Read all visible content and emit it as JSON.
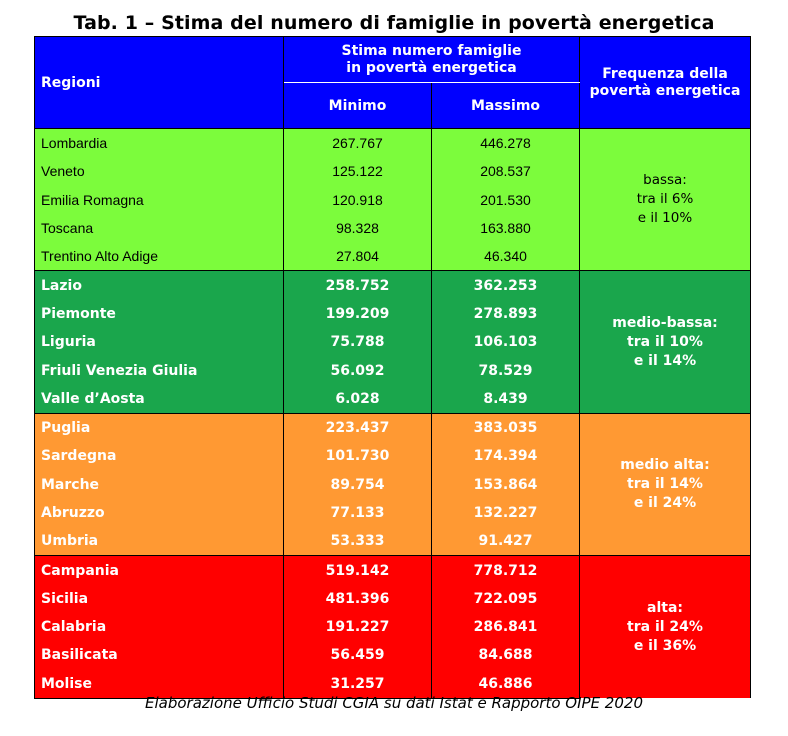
{
  "title": "Tab. 1 – Stima del numero di famiglie in povertà energetica",
  "header": {
    "regioni": "Regioni",
    "stima_line1": "Stima numero famiglie",
    "stima_line2": "in povertà energetica",
    "minimo": "Minimo",
    "massimo": "Massimo",
    "freq_line1": "Frequenza della",
    "freq_line2": "povertà energetica"
  },
  "groups": [
    {
      "freq": [
        "bassa:",
        "tra il 6%",
        "e il 10%"
      ],
      "color": "#7cfc3c",
      "rows": [
        {
          "regione": "Lombardia",
          "minimo": "267.767",
          "massimo": "446.278"
        },
        {
          "regione": "Veneto",
          "minimo": "125.122",
          "massimo": "208.537"
        },
        {
          "regione": "Emilia Romagna",
          "minimo": "120.918",
          "massimo": "201.530"
        },
        {
          "regione": "Toscana",
          "minimo": "98.328",
          "massimo": "163.880"
        },
        {
          "regione": "Trentino Alto Adige",
          "minimo": "27.804",
          "massimo": "46.340"
        }
      ]
    },
    {
      "freq": [
        "medio-bassa:",
        "tra il 10%",
        "e il 14%"
      ],
      "color": "#1aa64c",
      "rows": [
        {
          "regione": "Lazio",
          "minimo": "258.752",
          "massimo": "362.253"
        },
        {
          "regione": "Piemonte",
          "minimo": "199.209",
          "massimo": "278.893"
        },
        {
          "regione": "Liguria",
          "minimo": "75.788",
          "massimo": "106.103"
        },
        {
          "regione": "Friuli Venezia Giulia",
          "minimo": "56.092",
          "massimo": "78.529"
        },
        {
          "regione": "Valle d’Aosta",
          "minimo": "6.028",
          "massimo": "8.439"
        }
      ]
    },
    {
      "freq": [
        "medio alta:",
        "tra il 14%",
        "e il 24%"
      ],
      "color": "#ff9933",
      "rows": [
        {
          "regione": "Puglia",
          "minimo": "223.437",
          "massimo": "383.035"
        },
        {
          "regione": "Sardegna",
          "minimo": "101.730",
          "massimo": "174.394"
        },
        {
          "regione": "Marche",
          "minimo": "89.754",
          "massimo": "153.864"
        },
        {
          "regione": "Abruzzo",
          "minimo": "77.133",
          "massimo": "132.227"
        },
        {
          "regione": "Umbria",
          "minimo": "53.333",
          "massimo": "91.427"
        }
      ]
    },
    {
      "freq": [
        "alta:",
        "tra il 24%",
        "e il 36%"
      ],
      "color": "#ff0000",
      "rows": [
        {
          "regione": "Campania",
          "minimo": "519.142",
          "massimo": "778.712"
        },
        {
          "regione": "Sicilia",
          "minimo": "481.396",
          "massimo": "722.095"
        },
        {
          "regione": "Calabria",
          "minimo": "191.227",
          "massimo": "286.841"
        },
        {
          "regione": "Basilicata",
          "minimo": "56.459",
          "massimo": "84.688"
        },
        {
          "regione": "Molise",
          "minimo": "31.257",
          "massimo": "46.886"
        }
      ]
    }
  ],
  "source": "Elaborazione Ufficio Studi CGIA su dati Istat e Rapporto OIPE 2020",
  "colors": {
    "header_bg": "#0000ff",
    "header_text": "#ffffff"
  }
}
